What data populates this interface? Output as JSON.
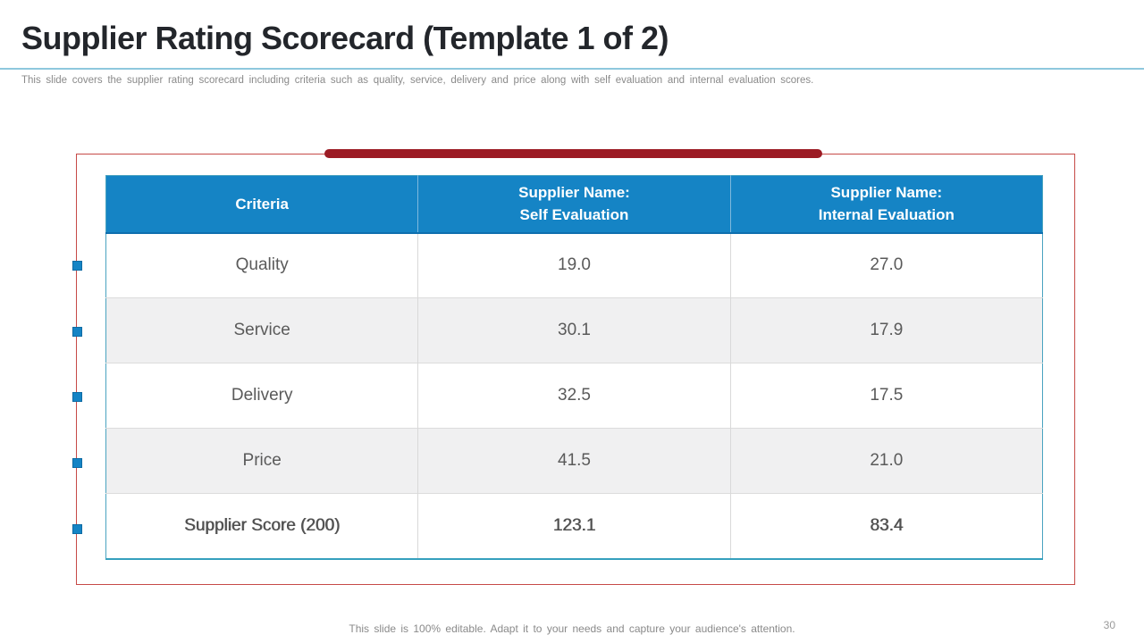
{
  "slide": {
    "title": "Supplier Rating Scorecard (Template 1 of 2)",
    "subtitle": "This slide covers the supplier rating scorecard including criteria such as quality, service, delivery and price along with self evaluation and internal evaluation scores.",
    "footer": "This slide is 100% editable. Adapt it to your needs and capture your audience's attention.",
    "page_number": "30"
  },
  "table": {
    "col1_header": "Criteria",
    "col2_header_line1": "Supplier Name:",
    "col2_header_line2": "Self Evaluation",
    "col3_header_line1": "Supplier Name:",
    "col3_header_line2": "Internal Evaluation",
    "rows": [
      {
        "criteria": "Quality",
        "self_evaluation": "19.0",
        "internal_evaluation": "27.0"
      },
      {
        "criteria": "Service",
        "self_evaluation": "30.1",
        "internal_evaluation": "17.9"
      },
      {
        "criteria": "Delivery",
        "self_evaluation": "32.5",
        "internal_evaluation": "17.5"
      },
      {
        "criteria": "Price",
        "self_evaluation": "41.5",
        "internal_evaluation": "21.0"
      },
      {
        "criteria": "Supplier Score (200)",
        "self_evaluation": "123.1",
        "internal_evaluation": "83.4"
      }
    ]
  },
  "chart_data": {
    "type": "table",
    "columns": [
      "Criteria",
      "Supplier Name: Self Evaluation",
      "Supplier Name: Internal Evaluation"
    ],
    "rows": [
      [
        "Quality",
        19.0,
        27.0
      ],
      [
        "Service",
        30.1,
        17.9
      ],
      [
        "Delivery",
        32.5,
        17.5
      ],
      [
        "Price",
        41.5,
        21.0
      ],
      [
        "Supplier Score (200)",
        123.1,
        83.4
      ]
    ]
  },
  "colors": {
    "header_blue": "#1584c5",
    "bullet_blue": "#1584c5",
    "frame_red": "#c64a47",
    "accent_bar_dark_red": "#9c1b24",
    "table_border_teal": "#4aa3c0",
    "alt_row_gray": "#f0f0f1",
    "body_text_gray": "#5a5a5a",
    "title_rule_light_blue": "#8ec8dd"
  }
}
